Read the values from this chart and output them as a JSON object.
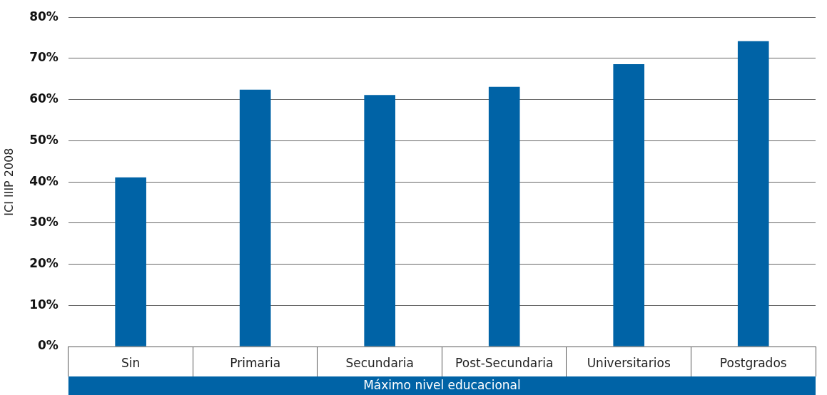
{
  "chart_data": {
    "type": "bar",
    "xlabel": "Máximo nivel educacional",
    "ylabel": "ICI IIIP 2008",
    "categories": [
      "Sin",
      "Primaria",
      "Secundaria",
      "Post-Secundaria",
      "Universitarios",
      "Postgrados"
    ],
    "values": [
      41.1,
      62.4,
      61.1,
      63.1,
      68.6,
      74.2
    ],
    "color": "#0063a6",
    "ylim": [
      0,
      80
    ],
    "yticks": [
      {
        "value": 0,
        "label": "0%"
      },
      {
        "value": 10,
        "label": "10%"
      },
      {
        "value": 20,
        "label": "20%"
      },
      {
        "value": 30,
        "label": "30%"
      },
      {
        "value": 40,
        "label": "40%"
      },
      {
        "value": 50,
        "label": "50%"
      },
      {
        "value": 60,
        "label": "60%"
      },
      {
        "value": 70,
        "label": "70%"
      },
      {
        "value": 80,
        "label": "80%"
      }
    ],
    "grid": "y",
    "legend": false
  }
}
